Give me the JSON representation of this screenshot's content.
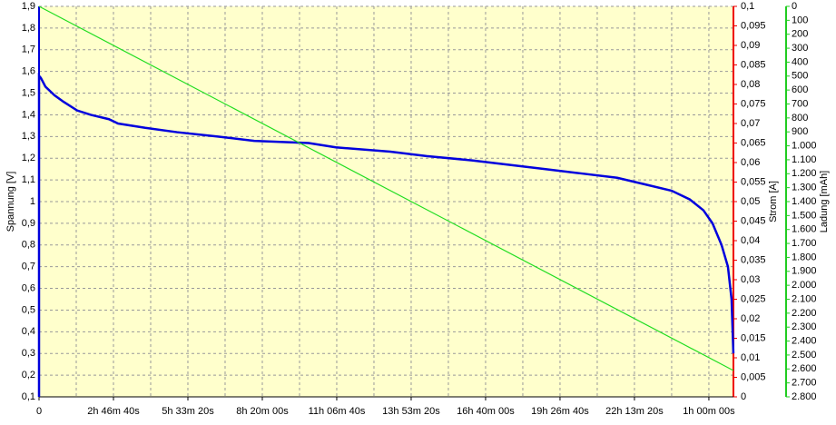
{
  "chart_data": {
    "type": "line",
    "ylabel": "Spannung [V]",
    "y2label": "Strom [A]",
    "y3label": "Ladung [mAh]",
    "xlim": [
      0,
      93300
    ],
    "ylim": [
      0.1,
      1.9
    ],
    "y2lim": [
      0,
      0.1
    ],
    "y3lim": [
      0,
      2800
    ],
    "y3inverted": true,
    "xticks": [
      {
        "value": 0,
        "label": "0"
      },
      {
        "value": 10000,
        "label": "2h 46m 40s"
      },
      {
        "value": 20000,
        "label": "5h 33m 20s"
      },
      {
        "value": 30000,
        "label": "8h 20m 00s"
      },
      {
        "value": 40000,
        "label": "11h 06m 40s"
      },
      {
        "value": 50000,
        "label": "13h 53m 20s"
      },
      {
        "value": 60000,
        "label": "16h 40m 00s"
      },
      {
        "value": 70000,
        "label": "19h 26m 40s"
      },
      {
        "value": 80000,
        "label": "22h 13m 20s"
      },
      {
        "value": 90000,
        "label": "1h 00m 00s"
      }
    ],
    "xgrid": [
      5000,
      15000,
      25000,
      35000,
      45000,
      55000,
      65000,
      75000,
      85000
    ],
    "yticks": [
      {
        "value": 0.1,
        "label": "0,1"
      },
      {
        "value": 0.2,
        "label": "0,2"
      },
      {
        "value": 0.3,
        "label": "0,3"
      },
      {
        "value": 0.4,
        "label": "0,4"
      },
      {
        "value": 0.5,
        "label": "0,5"
      },
      {
        "value": 0.6,
        "label": "0,6"
      },
      {
        "value": 0.7,
        "label": "0,7"
      },
      {
        "value": 0.8,
        "label": "0,8"
      },
      {
        "value": 0.9,
        "label": "0,9"
      },
      1,
      {
        "value": 1.1,
        "label": "1,1"
      },
      {
        "value": 1.2,
        "label": "1,2"
      },
      {
        "value": 1.3,
        "label": "1,3"
      },
      {
        "value": 1.4,
        "label": "1,4"
      },
      {
        "value": 1.5,
        "label": "1,5"
      },
      {
        "value": 1.6,
        "label": "1,6"
      },
      {
        "value": 1.7,
        "label": "1,7"
      },
      {
        "value": 1.8,
        "label": "1,8"
      },
      {
        "value": 1.9,
        "label": "1,9"
      }
    ],
    "y2ticks": [
      0,
      {
        "value": 0.005,
        "label": "0,005"
      },
      {
        "value": 0.01,
        "label": "0,01"
      },
      {
        "value": 0.015,
        "label": "0,015"
      },
      {
        "value": 0.02,
        "label": "0,02"
      },
      {
        "value": 0.025,
        "label": "0,025"
      },
      {
        "value": 0.03,
        "label": "0,03"
      },
      {
        "value": 0.035,
        "label": "0,035"
      },
      {
        "value": 0.04,
        "label": "0,04"
      },
      {
        "value": 0.045,
        "label": "0,045"
      },
      {
        "value": 0.05,
        "label": "0,05"
      },
      {
        "value": 0.055,
        "label": "0,055"
      },
      {
        "value": 0.06,
        "label": "0,06"
      },
      {
        "value": 0.065,
        "label": "0,065"
      },
      {
        "value": 0.07,
        "label": "0,07"
      },
      {
        "value": 0.075,
        "label": "0,075"
      },
      {
        "value": 0.08,
        "label": "0,08"
      },
      {
        "value": 0.085,
        "label": "0,085"
      },
      {
        "value": 0.09,
        "label": "0,09"
      },
      {
        "value": 0.095,
        "label": "0,095"
      },
      {
        "value": 0.1,
        "label": "0,1"
      }
    ],
    "y3ticks": [
      0,
      100,
      200,
      300,
      400,
      500,
      600,
      700,
      800,
      900,
      {
        "value": 1000,
        "label": "1.000"
      },
      {
        "value": 1100,
        "label": "1.100"
      },
      {
        "value": 1200,
        "label": "1.200"
      },
      {
        "value": 1300,
        "label": "1.300"
      },
      {
        "value": 1400,
        "label": "1.400"
      },
      {
        "value": 1500,
        "label": "1.500"
      },
      {
        "value": 1600,
        "label": "1.600"
      },
      {
        "value": 1700,
        "label": "1.700"
      },
      {
        "value": 1800,
        "label": "1.800"
      },
      {
        "value": 1900,
        "label": "1.900"
      },
      {
        "value": 2000,
        "label": "2.000"
      },
      {
        "value": 2100,
        "label": "2.100"
      },
      {
        "value": 2200,
        "label": "2.200"
      },
      {
        "value": 2300,
        "label": "2.300"
      },
      {
        "value": 2400,
        "label": "2.400"
      },
      {
        "value": 2500,
        "label": "2.500"
      },
      {
        "value": 2600,
        "label": "2.600"
      },
      {
        "value": 2700,
        "label": "2.700"
      },
      {
        "value": 2800,
        "label": "2.800"
      }
    ],
    "series": [
      {
        "color": "#0000dd",
        "axis": "y",
        "x": [
          0,
          0,
          244,
          854,
          2073,
          3293,
          5122,
          6951,
          9390,
          10610,
          14268,
          18537,
          24024,
          28902,
          36220,
          39878,
          47195,
          52073,
          58171,
          63049,
          67927,
          72805,
          77683,
          81341,
          85000,
          87439,
          89268,
          90488,
          91707,
          92561,
          93049,
          93293
        ],
        "values": [
          0.1,
          1.58,
          1.57,
          1.53,
          1.49,
          1.46,
          1.42,
          1.4,
          1.38,
          1.36,
          1.34,
          1.32,
          1.3,
          1.28,
          1.27,
          1.25,
          1.23,
          1.21,
          1.19,
          1.17,
          1.15,
          1.13,
          1.11,
          1.08,
          1.05,
          1.01,
          0.96,
          0.9,
          0.8,
          0.7,
          0.55,
          0.3
        ]
      },
      {
        "color": "#22dd22",
        "axis": "y3",
        "x": [
          0,
          93300
        ],
        "values": [
          0,
          2611
        ]
      }
    ]
  }
}
